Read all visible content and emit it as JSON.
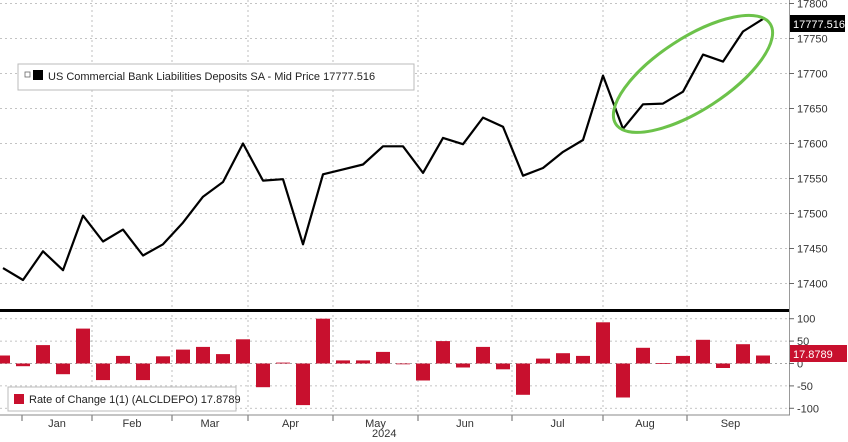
{
  "chart_data": [
    {
      "type": "line",
      "title": "",
      "legend": {
        "label": "US Commercial Bank Liabilities Deposits SA - Mid Price 17777.516",
        "placement": "top-left"
      },
      "last_value_label": "17777.516",
      "color": "#000000",
      "highlight_color": "#6cc24a",
      "ylim": [
        17365,
        17805
      ],
      "y_ticks": [
        "17400",
        "17450",
        "17500",
        "17550",
        "17600",
        "17650",
        "17700",
        "17750",
        "17800"
      ],
      "grid": true,
      "series": [
        {
          "values": [
            17422,
            17405,
            17446,
            17419,
            17497,
            17460,
            17477,
            17440,
            17456,
            17487,
            17524,
            17545,
            17600,
            17547,
            17549,
            17456,
            17556,
            17563,
            17570,
            17596,
            17596,
            17558,
            17608,
            17599,
            17637,
            17624,
            17554,
            17565,
            17588,
            17605,
            17697,
            17621,
            17656,
            17657,
            17674,
            17727,
            17717,
            17760,
            17778
          ]
        }
      ]
    },
    {
      "type": "bar",
      "legend": {
        "label": "Rate of Change 1(1) (ALCLDEPO) 17.8789",
        "placement": "bottom-left"
      },
      "last_value_label": "17.8789",
      "color": "#c8102e",
      "ylim": [
        -115,
        115
      ],
      "y_ticks": [
        "100",
        "50",
        "0",
        "-50",
        "-100"
      ],
      "values": [
        17.9,
        -6,
        41,
        -24,
        78,
        -37,
        17,
        -37,
        16,
        31,
        37,
        21,
        54,
        -53,
        2,
        -93,
        100,
        7,
        7,
        26,
        0,
        -38,
        50,
        -9,
        37,
        -13,
        -70,
        11,
        23,
        17,
        92,
        -76,
        35,
        1,
        17,
        53,
        -10,
        43,
        17.9
      ],
      "grid": true
    }
  ],
  "x_axis": {
    "months": [
      "Jan",
      "Feb",
      "Mar",
      "Apr",
      "May",
      "Jun",
      "Jul",
      "Aug",
      "Sep"
    ],
    "year": "2024"
  }
}
